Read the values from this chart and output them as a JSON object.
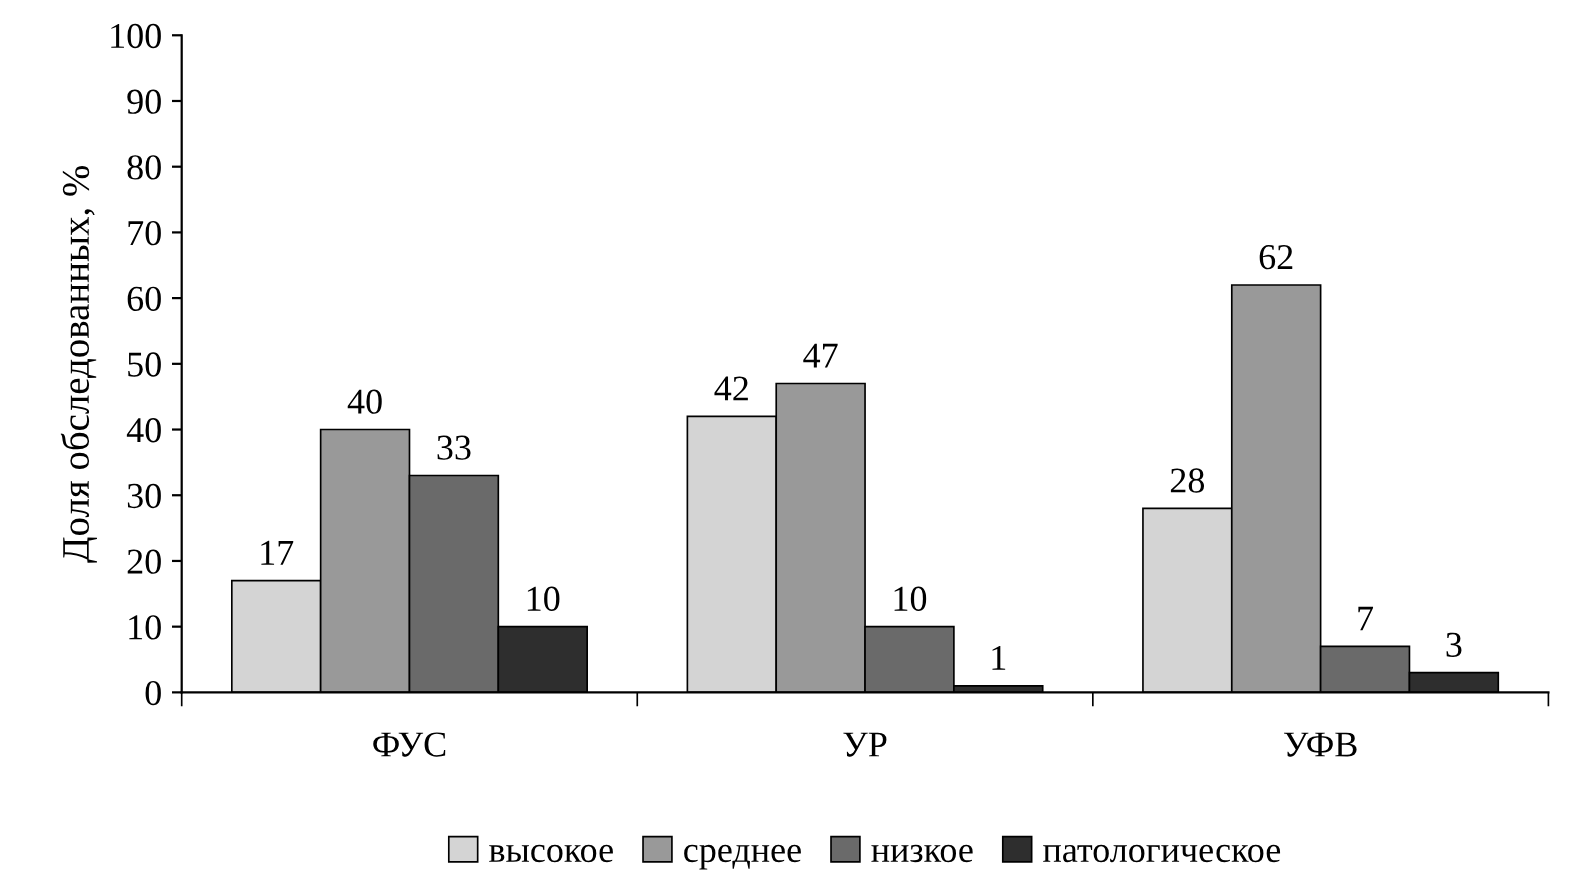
{
  "chart_data": {
    "type": "bar",
    "ylabel": "Доля обследованных, %",
    "categories": [
      "ФУС",
      "УР",
      "УФВ"
    ],
    "series": [
      {
        "name": "высокое",
        "color": "#d4d4d4",
        "values": [
          17,
          42,
          28
        ]
      },
      {
        "name": "среднее",
        "color": "#999999",
        "values": [
          40,
          47,
          62
        ]
      },
      {
        "name": "низкое",
        "color": "#6a6a6a",
        "values": [
          33,
          10,
          7
        ]
      },
      {
        "name": "патологическое",
        "color": "#2e2e2e",
        "values": [
          10,
          1,
          3
        ]
      }
    ],
    "ylim": [
      0,
      100
    ],
    "yticks": [
      0,
      10,
      20,
      30,
      40,
      50,
      60,
      70,
      80,
      90,
      100
    ],
    "grid": false,
    "legend": "bottom",
    "data_labels": true
  }
}
